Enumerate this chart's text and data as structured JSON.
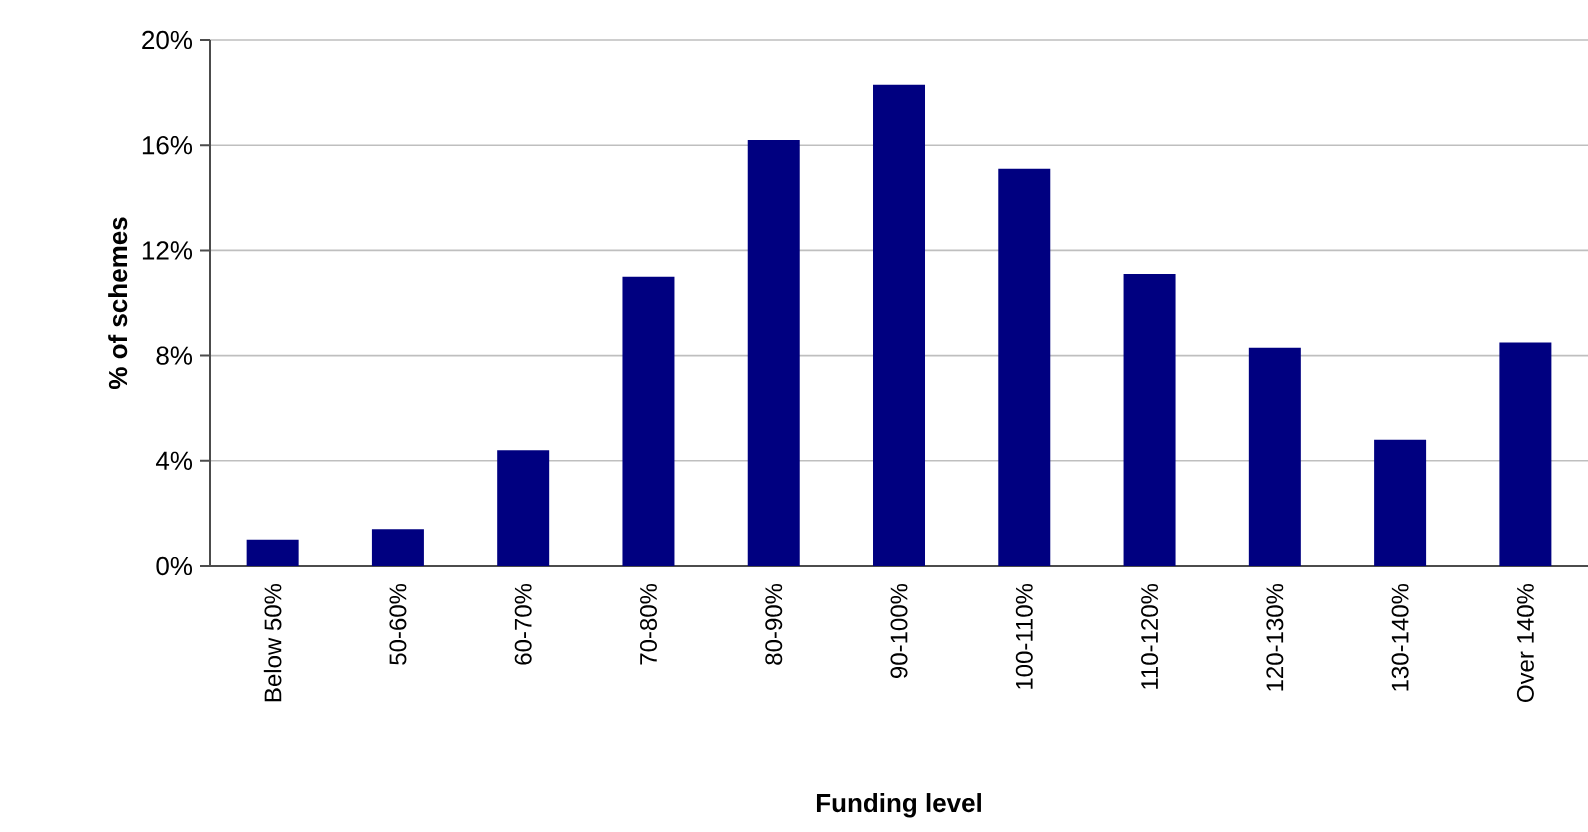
{
  "chart_data": {
    "type": "bar",
    "xlabel": "Funding level",
    "ylabel": "% of schemes",
    "categories": [
      "Below 50%",
      "50-60%",
      "60-70%",
      "70-80%",
      "80-90%",
      "90-100%",
      "100-110%",
      "110-120%",
      "120-130%",
      "130-140%",
      "Over 140%"
    ],
    "values": [
      1.0,
      1.4,
      4.4,
      11.0,
      16.2,
      18.3,
      15.1,
      11.1,
      8.3,
      4.8,
      8.5
    ],
    "color": "#000080",
    "ylim": [
      0,
      20
    ],
    "yticks": [
      {
        "value": 0,
        "label": "0%"
      },
      {
        "value": 4,
        "label": "4%"
      },
      {
        "value": 8,
        "label": "8%"
      },
      {
        "value": 12,
        "label": "12%"
      },
      {
        "value": 16,
        "label": "16%"
      },
      {
        "value": 20,
        "label": "20%"
      }
    ],
    "grid": "y"
  }
}
